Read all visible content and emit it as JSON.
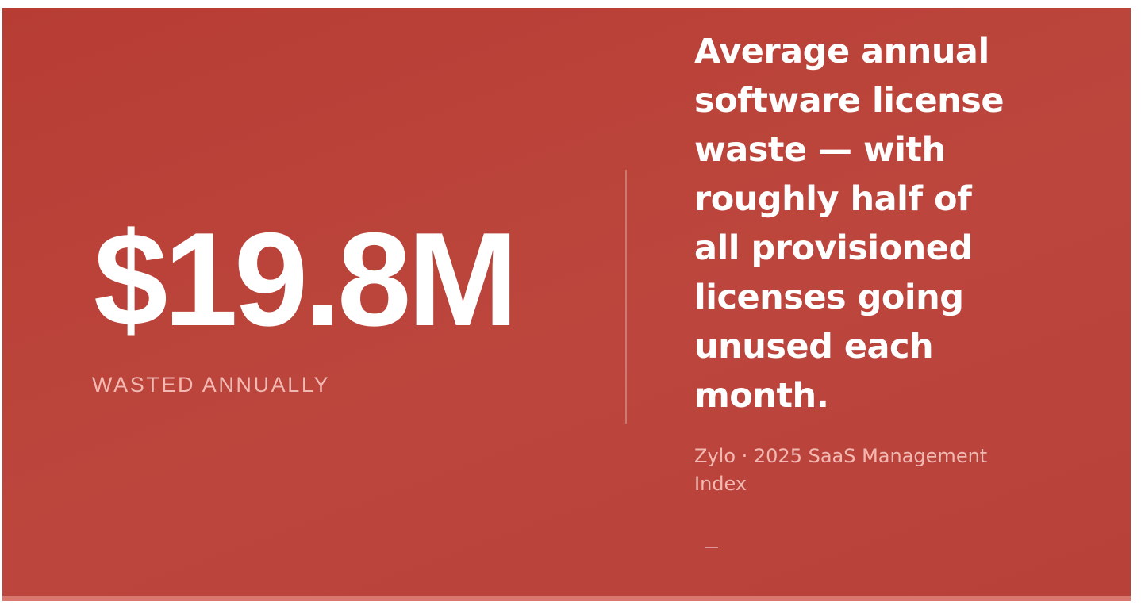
{
  "stat": {
    "value": "$19.8M",
    "label": "WASTED ANNUALLY"
  },
  "description": "Average annual software license waste — with roughly half of all provisioned licenses going unused each month.",
  "source": "Zylo · 2025 SaaS Management Index",
  "colors": {
    "background": "#b93f36",
    "accent_bar": "#d9776f",
    "label_text": "#f1b9b2",
    "primary_text": "#ffffff"
  }
}
